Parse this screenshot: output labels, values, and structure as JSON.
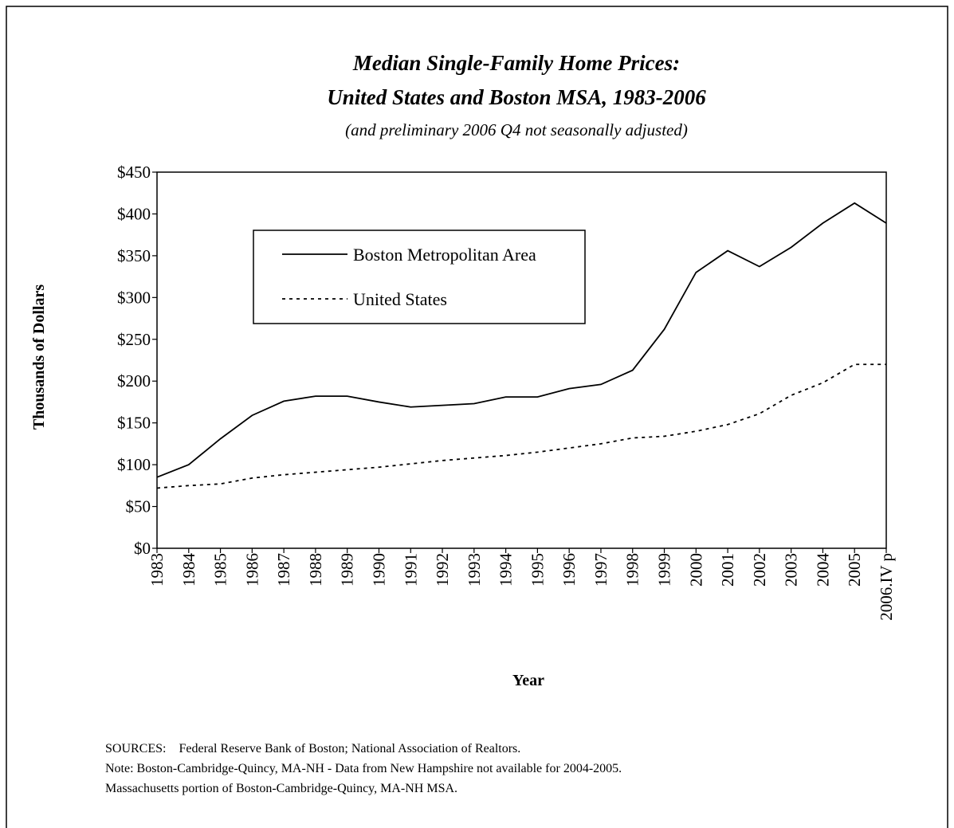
{
  "chart_data": {
    "type": "line",
    "title": [
      "Median Single-Family Home Prices:",
      "United States and Boston MSA, 1983-2006"
    ],
    "subtitle": "(and preliminary 2006 Q4 not seasonally adjusted)",
    "x_label": "Year",
    "y_label": "Thousands of Dollars",
    "categories": [
      "1983",
      "1984",
      "1985",
      "1986",
      "1987",
      "1988",
      "1989",
      "1990",
      "1991",
      "1992",
      "1993",
      "1994",
      "1995",
      "1996",
      "1997",
      "1998",
      "1999",
      "2000",
      "2001",
      "2002",
      "2003",
      "2004",
      "2005",
      "2006.IV p"
    ],
    "series": [
      {
        "name": "Boston Metropolitan Area",
        "color": "#000000",
        "dash": "solid",
        "values": [
          85,
          100,
          131,
          159,
          176,
          182,
          182,
          175,
          169,
          171,
          173,
          181,
          181,
          191,
          196,
          213,
          262,
          330,
          356,
          337,
          360,
          389,
          413,
          389
        ]
      },
      {
        "name": "United States",
        "color": "#000000",
        "dash": "dotted",
        "values": [
          72,
          75,
          77,
          84,
          88,
          91,
          94,
          97,
          101,
          105,
          108,
          111,
          115,
          120,
          125,
          132,
          134,
          140,
          148,
          161,
          183,
          198,
          220,
          220
        ]
      }
    ],
    "ylim": [
      0,
      450
    ],
    "yticks": [
      {
        "value": 0,
        "label": "$0"
      },
      {
        "value": 50,
        "label": "$50"
      },
      {
        "value": 100,
        "label": "$100"
      },
      {
        "value": 150,
        "label": "$150"
      },
      {
        "value": 200,
        "label": "$200"
      },
      {
        "value": 250,
        "label": "$250"
      },
      {
        "value": 300,
        "label": "$300"
      },
      {
        "value": 350,
        "label": "$350"
      },
      {
        "value": 400,
        "label": "$400"
      },
      {
        "value": 450,
        "label": "$450"
      }
    ],
    "grid": false,
    "legend": "upper left",
    "notes": [
      "SOURCES:    Federal Reserve Bank of Boston; National Association of Realtors.",
      "Note: Boston-Cambridge-Quincy, MA-NH - Data from New Hampshire not available for 2004-2005.",
      "Massachusetts portion of Boston-Cambridge-Quincy, MA-NH MSA."
    ]
  }
}
